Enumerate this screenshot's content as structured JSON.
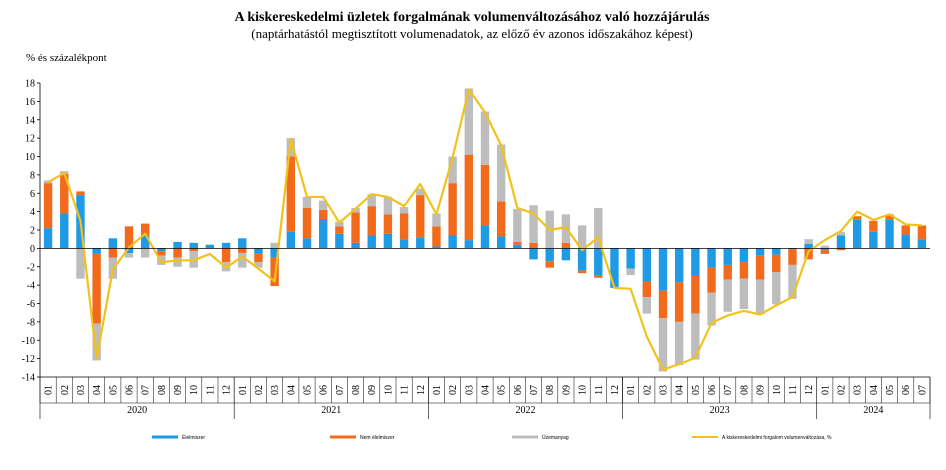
{
  "chart_data": {
    "type": "bar",
    "stacked": true,
    "title": "A kiskereskedelmi üzletek forgalmának volumenváltozásához való hozzájárulás",
    "subtitle": "(naptárhatástól megtisztított volumenadatok, az előző év azonos időszakához képest)",
    "ylabel": "% és százalékpont",
    "ylim": [
      -14,
      18
    ],
    "yticks": [
      -14,
      -12,
      -10,
      -8,
      -6,
      -4,
      -2,
      0,
      2,
      4,
      6,
      8,
      10,
      12,
      14,
      16,
      18
    ],
    "grid": false,
    "legend_position": "bottom",
    "years": [
      {
        "label": "2020",
        "months": 12
      },
      {
        "label": "2021",
        "months": 12
      },
      {
        "label": "2022",
        "months": 12
      },
      {
        "label": "2023",
        "months": 12
      },
      {
        "label": "2024",
        "months": 7
      }
    ],
    "categories": [
      "01",
      "02",
      "03",
      "04",
      "05",
      "06",
      "07",
      "08",
      "09",
      "10",
      "11",
      "12",
      "01",
      "02",
      "03",
      "04",
      "05",
      "06",
      "07",
      "08",
      "09",
      "10",
      "11",
      "12",
      "01",
      "02",
      "03",
      "04",
      "05",
      "06",
      "07",
      "08",
      "09",
      "10",
      "11",
      "12",
      "01",
      "02",
      "03",
      "04",
      "05",
      "06",
      "07",
      "08",
      "09",
      "10",
      "11",
      "12",
      "01",
      "02",
      "03",
      "04",
      "05",
      "06",
      "07"
    ],
    "series": [
      {
        "name": "Élelmiszer",
        "color": "#1f9be6",
        "values": [
          2.2,
          3.8,
          5.8,
          -0.6,
          1.1,
          -0.5,
          1.4,
          -0.3,
          0.7,
          0.6,
          0.4,
          0.6,
          1.1,
          -0.6,
          -1.0,
          1.8,
          1.1,
          3.2,
          1.6,
          0.6,
          1.4,
          1.6,
          1.0,
          1.2,
          0.2,
          1.4,
          0.9,
          2.5,
          1.3,
          0.4,
          -1.2,
          -1.4,
          -1.3,
          -2.4,
          -2.9,
          -4.3,
          -2.2,
          -3.6,
          -4.6,
          -3.7,
          -3.0,
          -2.1,
          -1.8,
          -1.5,
          -0.8,
          -0.7,
          -0.1,
          0.5,
          -0.2,
          1.4,
          3.1,
          1.8,
          3.1,
          1.5,
          1.0
        ]
      },
      {
        "name": "Nem élelmiszer",
        "color": "#f26b1d",
        "values": [
          4.9,
          4.3,
          0.4,
          -7.6,
          -1.0,
          2.4,
          1.3,
          -0.5,
          -1.0,
          -0.3,
          0.0,
          -1.5,
          -0.5,
          -0.9,
          -3.1,
          8.2,
          3.3,
          1.0,
          0.8,
          3.3,
          3.2,
          2.1,
          2.8,
          4.6,
          2.2,
          5.7,
          9.3,
          6.6,
          3.8,
          0.3,
          0.6,
          -0.7,
          0.6,
          -0.3,
          -0.3,
          0.0,
          0.0,
          -1.7,
          -3.0,
          -4.3,
          -4.1,
          -2.7,
          -1.6,
          -1.8,
          -2.6,
          -1.9,
          -1.7,
          -1.2,
          -0.4,
          -0.2,
          0.4,
          1.2,
          0.6,
          1.0,
          1.5
        ]
      },
      {
        "name": "Üzemanyag",
        "color": "#bdbdbd",
        "values": [
          0.3,
          0.3,
          -3.3,
          -4.0,
          -2.3,
          -0.5,
          -1.0,
          -1.0,
          -1.0,
          -1.8,
          0.0,
          -1.0,
          -1.6,
          -0.6,
          0.6,
          2.0,
          1.2,
          1.0,
          0.5,
          0.5,
          1.3,
          1.9,
          0.7,
          0.7,
          1.4,
          2.9,
          7.2,
          5.8,
          6.2,
          3.6,
          4.1,
          4.1,
          3.1,
          2.5,
          4.4,
          0.0,
          -0.7,
          -1.8,
          -5.8,
          -4.7,
          -5.0,
          -3.6,
          -3.5,
          -3.3,
          -3.8,
          -3.5,
          -3.7,
          0.5,
          0.3,
          0.4,
          0.0,
          0.0,
          0.0,
          0.0,
          0.0
        ]
      },
      {
        "name": "A kiskereskedelmi forgalom volumenváltozása, %",
        "color": "#f2c21b",
        "type": "line",
        "values": [
          7.2,
          8.2,
          3.0,
          -12.0,
          -2.3,
          0.1,
          1.6,
          -1.5,
          -1.3,
          -1.3,
          -0.6,
          -2.1,
          -0.9,
          -2.2,
          -3.6,
          11.9,
          5.6,
          5.6,
          2.8,
          4.3,
          5.9,
          5.6,
          4.6,
          7.0,
          3.7,
          9.9,
          17.3,
          14.8,
          11.2,
          4.4,
          3.8,
          2.0,
          2.3,
          -0.2,
          1.2,
          -4.3,
          -4.4,
          -9.6,
          -13.2,
          -12.6,
          -11.9,
          -8.1,
          -7.3,
          -6.8,
          -7.2,
          -6.2,
          -5.3,
          -0.3,
          0.9,
          1.9,
          4.0,
          3.1,
          3.7,
          2.6,
          2.5
        ]
      }
    ]
  }
}
